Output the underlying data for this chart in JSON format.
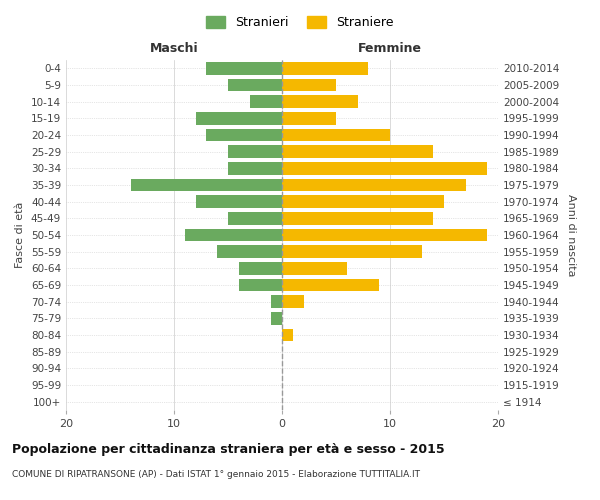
{
  "age_groups": [
    "100+",
    "95-99",
    "90-94",
    "85-89",
    "80-84",
    "75-79",
    "70-74",
    "65-69",
    "60-64",
    "55-59",
    "50-54",
    "45-49",
    "40-44",
    "35-39",
    "30-34",
    "25-29",
    "20-24",
    "15-19",
    "10-14",
    "5-9",
    "0-4"
  ],
  "birth_years": [
    "≤ 1914",
    "1915-1919",
    "1920-1924",
    "1925-1929",
    "1930-1934",
    "1935-1939",
    "1940-1944",
    "1945-1949",
    "1950-1954",
    "1955-1959",
    "1960-1964",
    "1965-1969",
    "1970-1974",
    "1975-1979",
    "1980-1984",
    "1985-1989",
    "1990-1994",
    "1995-1999",
    "2000-2004",
    "2005-2009",
    "2010-2014"
  ],
  "maschi": [
    0,
    0,
    0,
    0,
    0,
    1,
    1,
    4,
    4,
    6,
    9,
    5,
    8,
    14,
    5,
    5,
    7,
    8,
    3,
    5,
    7
  ],
  "femmine": [
    0,
    0,
    0,
    0,
    1,
    0,
    2,
    9,
    6,
    13,
    19,
    14,
    15,
    17,
    19,
    14,
    10,
    5,
    7,
    5,
    8
  ],
  "male_color": "#6aaa5f",
  "female_color": "#f5b800",
  "background_color": "#ffffff",
  "grid_color": "#cccccc",
  "dashed_line_color": "#999999",
  "title": "Popolazione per cittadinanza straniera per età e sesso - 2015",
  "subtitle": "COMUNE DI RIPATRANSONE (AP) - Dati ISTAT 1° gennaio 2015 - Elaborazione TUTTITALIA.IT",
  "ylabel_left": "Fasce di età",
  "ylabel_right": "Anni di nascita",
  "xlim": 20,
  "legend_male": "Stranieri",
  "legend_female": "Straniere",
  "maschi_label": "Maschi",
  "femmine_label": "Femmine"
}
